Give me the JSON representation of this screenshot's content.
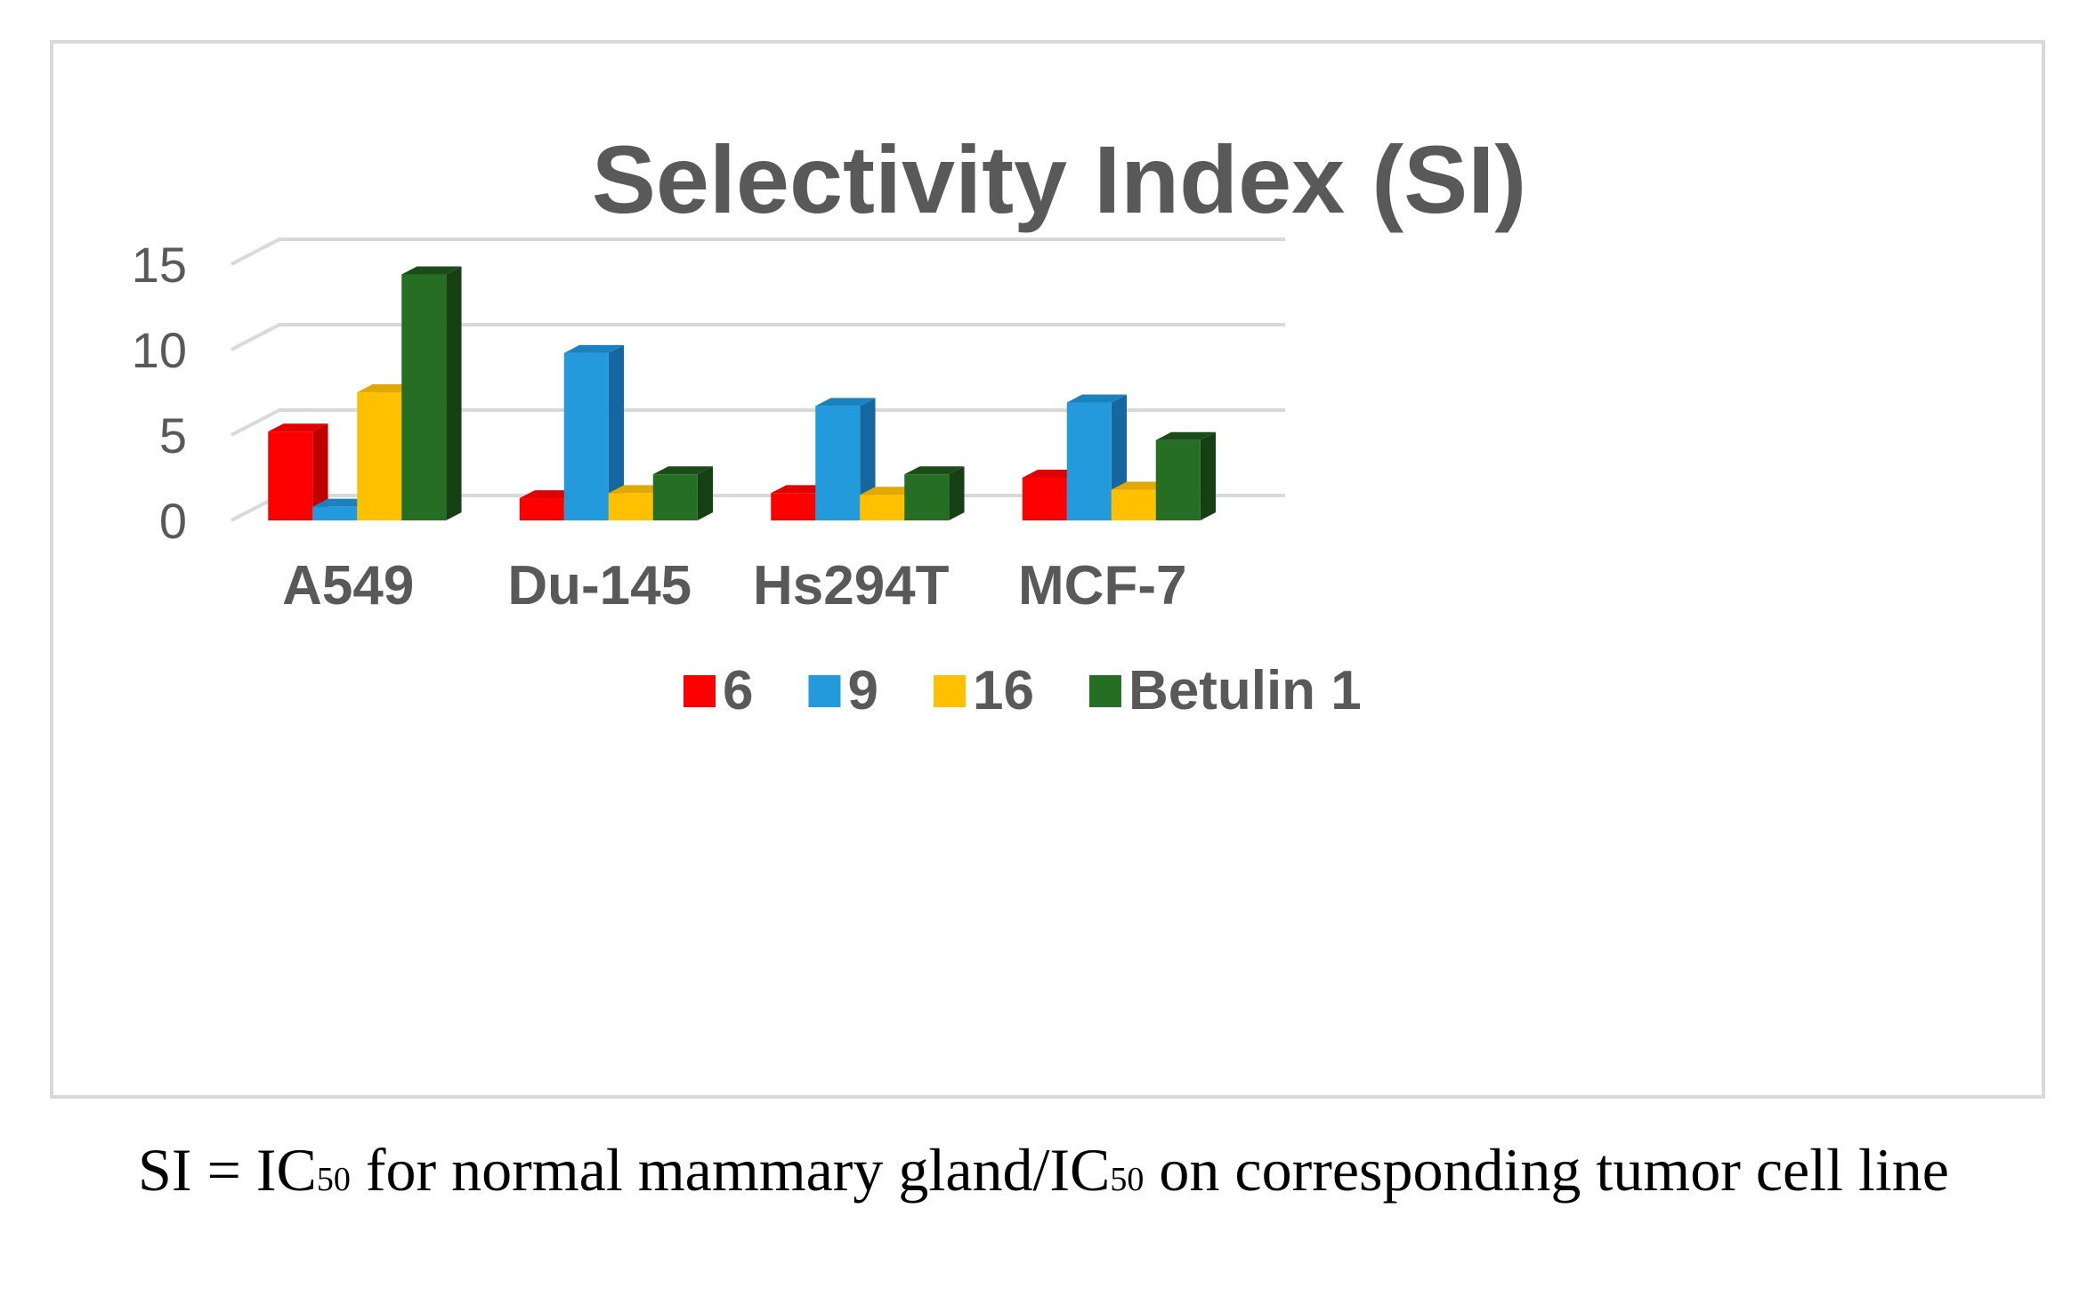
{
  "chart_data": {
    "type": "bar",
    "title": "Selectivity Index (SI)",
    "categories": [
      "A549",
      "Du-145",
      "Hs294T",
      "MCF-7"
    ],
    "series": [
      {
        "name": "6",
        "color": "#ff0000",
        "side": "#c00000",
        "top": "#e00000",
        "values": [
          5.2,
          1.3,
          1.6,
          2.5
        ]
      },
      {
        "name": "9",
        "color": "#229adb",
        "side": "#1667a0",
        "top": "#1b82c0",
        "values": [
          0.8,
          9.8,
          6.7,
          6.9
        ]
      },
      {
        "name": "16",
        "color": "#ffc000",
        "side": "#bf9000",
        "top": "#e0a800",
        "values": [
          7.5,
          1.6,
          1.5,
          1.8
        ]
      },
      {
        "name": "Betulin 1",
        "color": "#256e23",
        "side": "#163f14",
        "top": "#1b4d19",
        "values": [
          14.4,
          2.7,
          2.7,
          4.7
        ]
      }
    ],
    "ylim": [
      0,
      15
    ],
    "yticks": [
      0,
      5,
      10,
      15
    ],
    "xlabel": "",
    "ylabel": "",
    "legend_position": "bottom",
    "grid": true
  },
  "caption": {
    "prefix": "SI = IC",
    "sub1": "50",
    "middle": " for normal mammary gland/IC",
    "sub2": "50",
    "suffix": " on corresponding tumor cell line"
  }
}
